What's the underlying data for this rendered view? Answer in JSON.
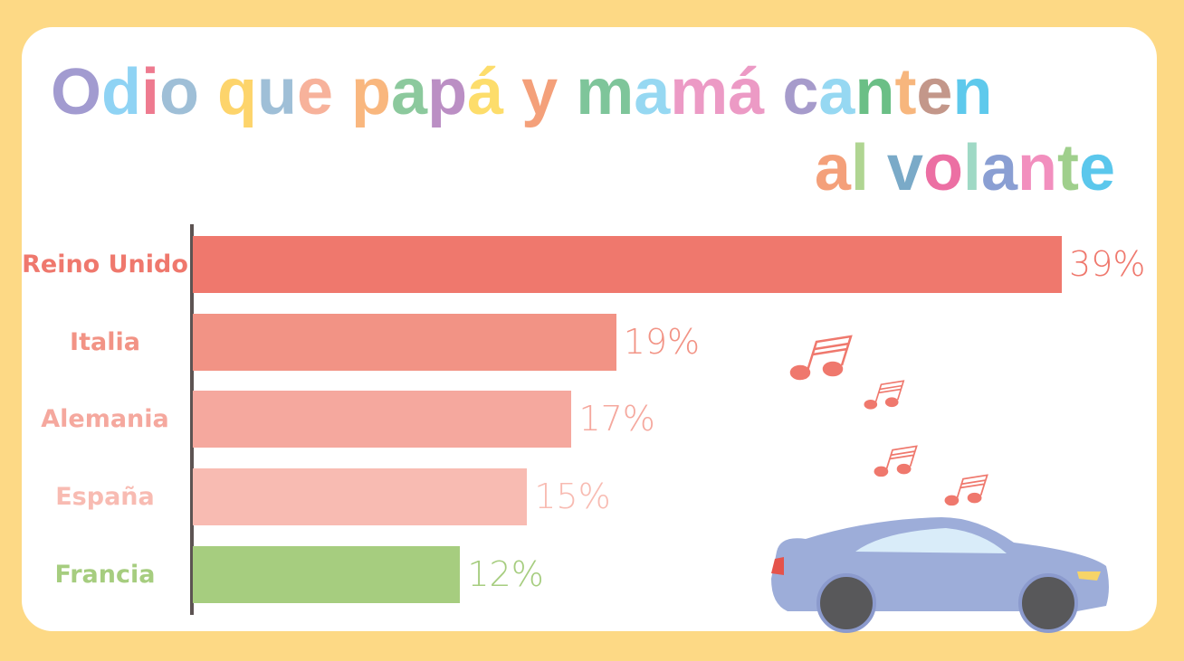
{
  "chart_data": {
    "type": "bar",
    "orientation": "horizontal",
    "title_line1": "Odio que papá y mamá canten",
    "title_line2": "al volante",
    "categories": [
      "Reino Unido",
      "Italia",
      "Alemania",
      "España",
      "Francia"
    ],
    "values": [
      39,
      19,
      17,
      15,
      12
    ],
    "value_labels": [
      "39%",
      "19%",
      "17%",
      "15%",
      "12%"
    ],
    "unit": "%",
    "xlim": [
      0,
      39
    ],
    "bar_colors": [
      "#ef786d",
      "#f29385",
      "#f5a89e",
      "#f8bbb2",
      "#a6cd7f"
    ],
    "label_colors": [
      "#ef786d",
      "#f29385",
      "#f5a89e",
      "#f8bbb2",
      "#a6cd7f"
    ],
    "title_colors_line1": [
      "#a29bd0",
      "#8fd3f4",
      "#ee7a8f",
      "#9fbfd7",
      "",
      "#fdd46b",
      "#9fbfd7",
      "#f7b29b",
      "",
      "#f9b77e",
      "#8cc99d",
      "#bb8fc4",
      "#fddd6b",
      "",
      "#f4a07a",
      "",
      "#7ec59a",
      "#96d8f2",
      "#ec9ac5",
      "#ec9ac5",
      "",
      "#a69bcb",
      "#96d8f2",
      "#6bbf86",
      "#f7b67d",
      "#c3978a",
      "#5ec9ec"
    ],
    "title_colors_line2": [
      "#f4a07a",
      "#b0d592",
      "",
      "#7aaac8",
      "#ec6fa3",
      "#9fd9c5",
      "#8a9fd3",
      "#f28fbe",
      "#9fcf8c",
      "#5bc7ec"
    ],
    "colors": {
      "background": "#fdd985",
      "card": "#ffffff",
      "axis": "#5c5352",
      "car": "#9dadd9",
      "notes": "#ef786d"
    }
  }
}
